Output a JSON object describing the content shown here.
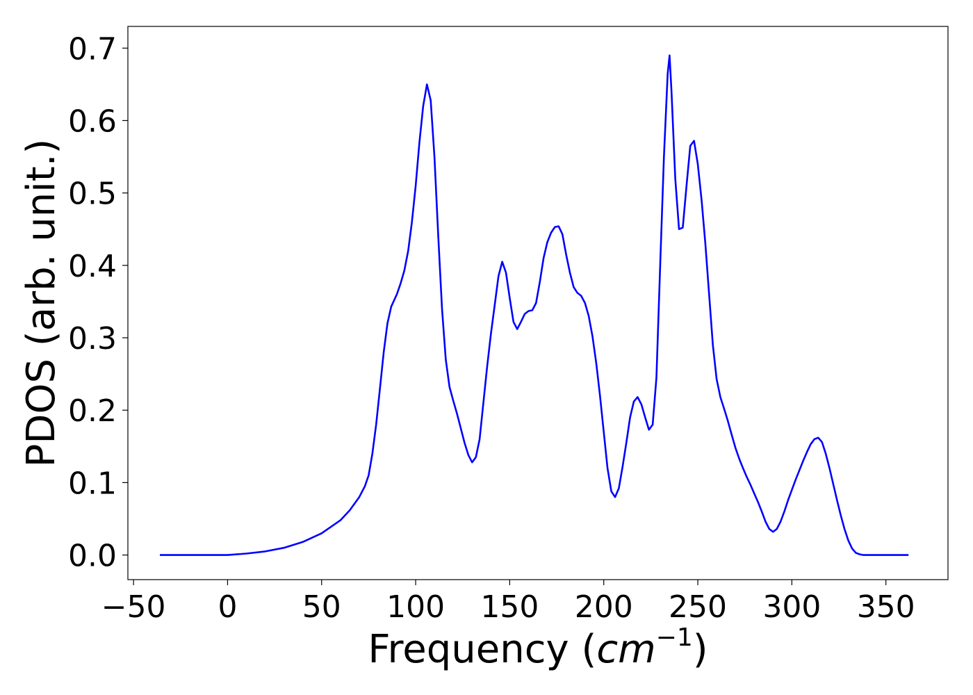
{
  "chart_data": {
    "type": "line",
    "title": "",
    "xlabel": "Frequency (",
    "xlabel_math": "cm",
    "xlabel_sup": "−1",
    "xlabel_close": ")",
    "ylabel": "PDOS (arb. unit.)",
    "xlim": [
      -53,
      383
    ],
    "ylim": [
      -0.034,
      0.73
    ],
    "grid": false,
    "legend": "none",
    "line_color": "#0000ff",
    "x_ticks": [
      {
        "value": -50,
        "label": "−50"
      },
      {
        "value": 0,
        "label": "0"
      },
      {
        "value": 50,
        "label": "50"
      },
      {
        "value": 100,
        "label": "100"
      },
      {
        "value": 150,
        "label": "150"
      },
      {
        "value": 200,
        "label": "200"
      },
      {
        "value": 250,
        "label": "250"
      },
      {
        "value": 300,
        "label": "300"
      },
      {
        "value": 350,
        "label": "350"
      }
    ],
    "y_ticks": [
      {
        "value": 0.0,
        "label": "0.0"
      },
      {
        "value": 0.1,
        "label": "0.1"
      },
      {
        "value": 0.2,
        "label": "0.2"
      },
      {
        "value": 0.3,
        "label": "0.3"
      },
      {
        "value": 0.4,
        "label": "0.4"
      },
      {
        "value": 0.5,
        "label": "0.5"
      },
      {
        "value": 0.6,
        "label": "0.6"
      },
      {
        "value": 0.7,
        "label": "0.7"
      }
    ],
    "series": [
      {
        "x": [
          -36,
          0,
          10,
          20,
          30,
          40,
          50,
          60,
          65,
          70,
          73,
          75,
          77,
          79,
          81,
          83,
          85,
          87,
          90,
          92,
          94,
          96,
          98,
          100,
          102,
          104,
          106,
          108,
          110,
          112,
          114,
          116,
          118,
          120,
          122,
          124,
          126,
          128,
          130,
          132,
          134,
          136,
          138,
          140,
          142,
          144,
          146,
          148,
          150,
          152,
          154,
          156,
          158,
          160,
          162,
          164,
          166,
          168,
          170,
          172,
          174,
          176,
          178,
          180,
          182,
          184,
          186,
          188,
          190,
          192,
          194,
          196,
          198,
          200,
          202,
          204,
          206,
          208,
          210,
          212,
          214,
          216,
          218,
          220,
          222,
          224,
          226,
          228,
          230,
          232,
          234,
          235,
          236,
          238,
          240,
          242,
          244,
          246,
          248,
          250,
          252,
          254,
          256,
          258,
          260,
          262,
          264,
          266,
          268,
          270,
          272,
          274,
          276,
          278,
          280,
          282,
          284,
          286,
          288,
          290,
          292,
          294,
          296,
          298,
          300,
          302,
          304,
          306,
          308,
          310,
          312,
          314,
          316,
          318,
          320,
          322,
          324,
          326,
          328,
          330,
          332,
          334,
          336,
          338,
          340,
          345,
          350,
          362
        ],
        "y": [
          0.0,
          0.0,
          0.002,
          0.005,
          0.01,
          0.018,
          0.03,
          0.048,
          0.062,
          0.08,
          0.095,
          0.11,
          0.14,
          0.18,
          0.23,
          0.28,
          0.32,
          0.343,
          0.36,
          0.375,
          0.393,
          0.42,
          0.46,
          0.51,
          0.57,
          0.62,
          0.65,
          0.628,
          0.55,
          0.44,
          0.34,
          0.27,
          0.232,
          0.213,
          0.195,
          0.175,
          0.155,
          0.138,
          0.128,
          0.135,
          0.16,
          0.21,
          0.26,
          0.305,
          0.345,
          0.385,
          0.405,
          0.39,
          0.355,
          0.322,
          0.312,
          0.322,
          0.333,
          0.337,
          0.338,
          0.348,
          0.377,
          0.41,
          0.432,
          0.445,
          0.453,
          0.454,
          0.443,
          0.415,
          0.39,
          0.37,
          0.362,
          0.358,
          0.348,
          0.33,
          0.302,
          0.265,
          0.22,
          0.17,
          0.12,
          0.088,
          0.08,
          0.092,
          0.122,
          0.155,
          0.19,
          0.212,
          0.218,
          0.208,
          0.19,
          0.173,
          0.18,
          0.245,
          0.4,
          0.55,
          0.665,
          0.69,
          0.64,
          0.52,
          0.45,
          0.452,
          0.51,
          0.565,
          0.572,
          0.54,
          0.49,
          0.43,
          0.36,
          0.29,
          0.243,
          0.218,
          0.202,
          0.185,
          0.166,
          0.148,
          0.133,
          0.12,
          0.108,
          0.097,
          0.085,
          0.073,
          0.06,
          0.046,
          0.036,
          0.032,
          0.036,
          0.046,
          0.06,
          0.076,
          0.09,
          0.104,
          0.117,
          0.13,
          0.142,
          0.153,
          0.16,
          0.162,
          0.156,
          0.14,
          0.12,
          0.098,
          0.076,
          0.055,
          0.036,
          0.02,
          0.009,
          0.003,
          0.001,
          0.0,
          0.0,
          0.0,
          0.0,
          0.0
        ]
      }
    ]
  }
}
